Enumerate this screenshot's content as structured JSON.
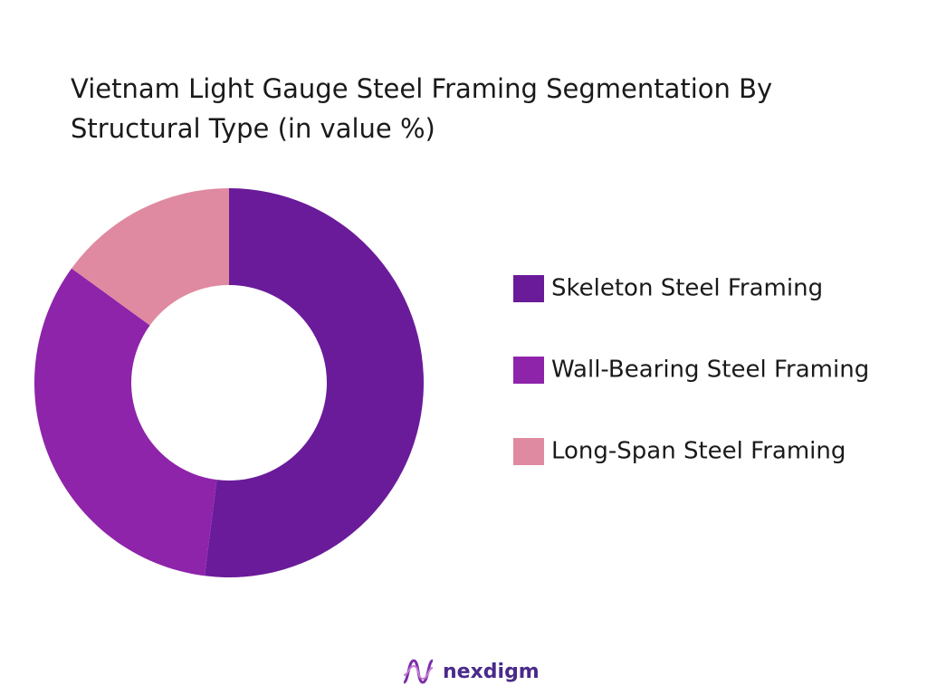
{
  "chart_data": {
    "type": "pie",
    "title": "Vietnam Light Gauge Steel Framing Segmentation By Structural Type (in value %)",
    "categories": [
      "Skeleton Steel Framing",
      "Wall-Bearing Steel Framing",
      "Long-Span Steel Framing"
    ],
    "values": [
      52,
      33,
      15
    ],
    "colors": [
      "#6a1b9a",
      "#8e24aa",
      "#df8aa0"
    ],
    "donut": true,
    "legend": "right"
  },
  "footer": {
    "logo_text": "nexdigm"
  }
}
